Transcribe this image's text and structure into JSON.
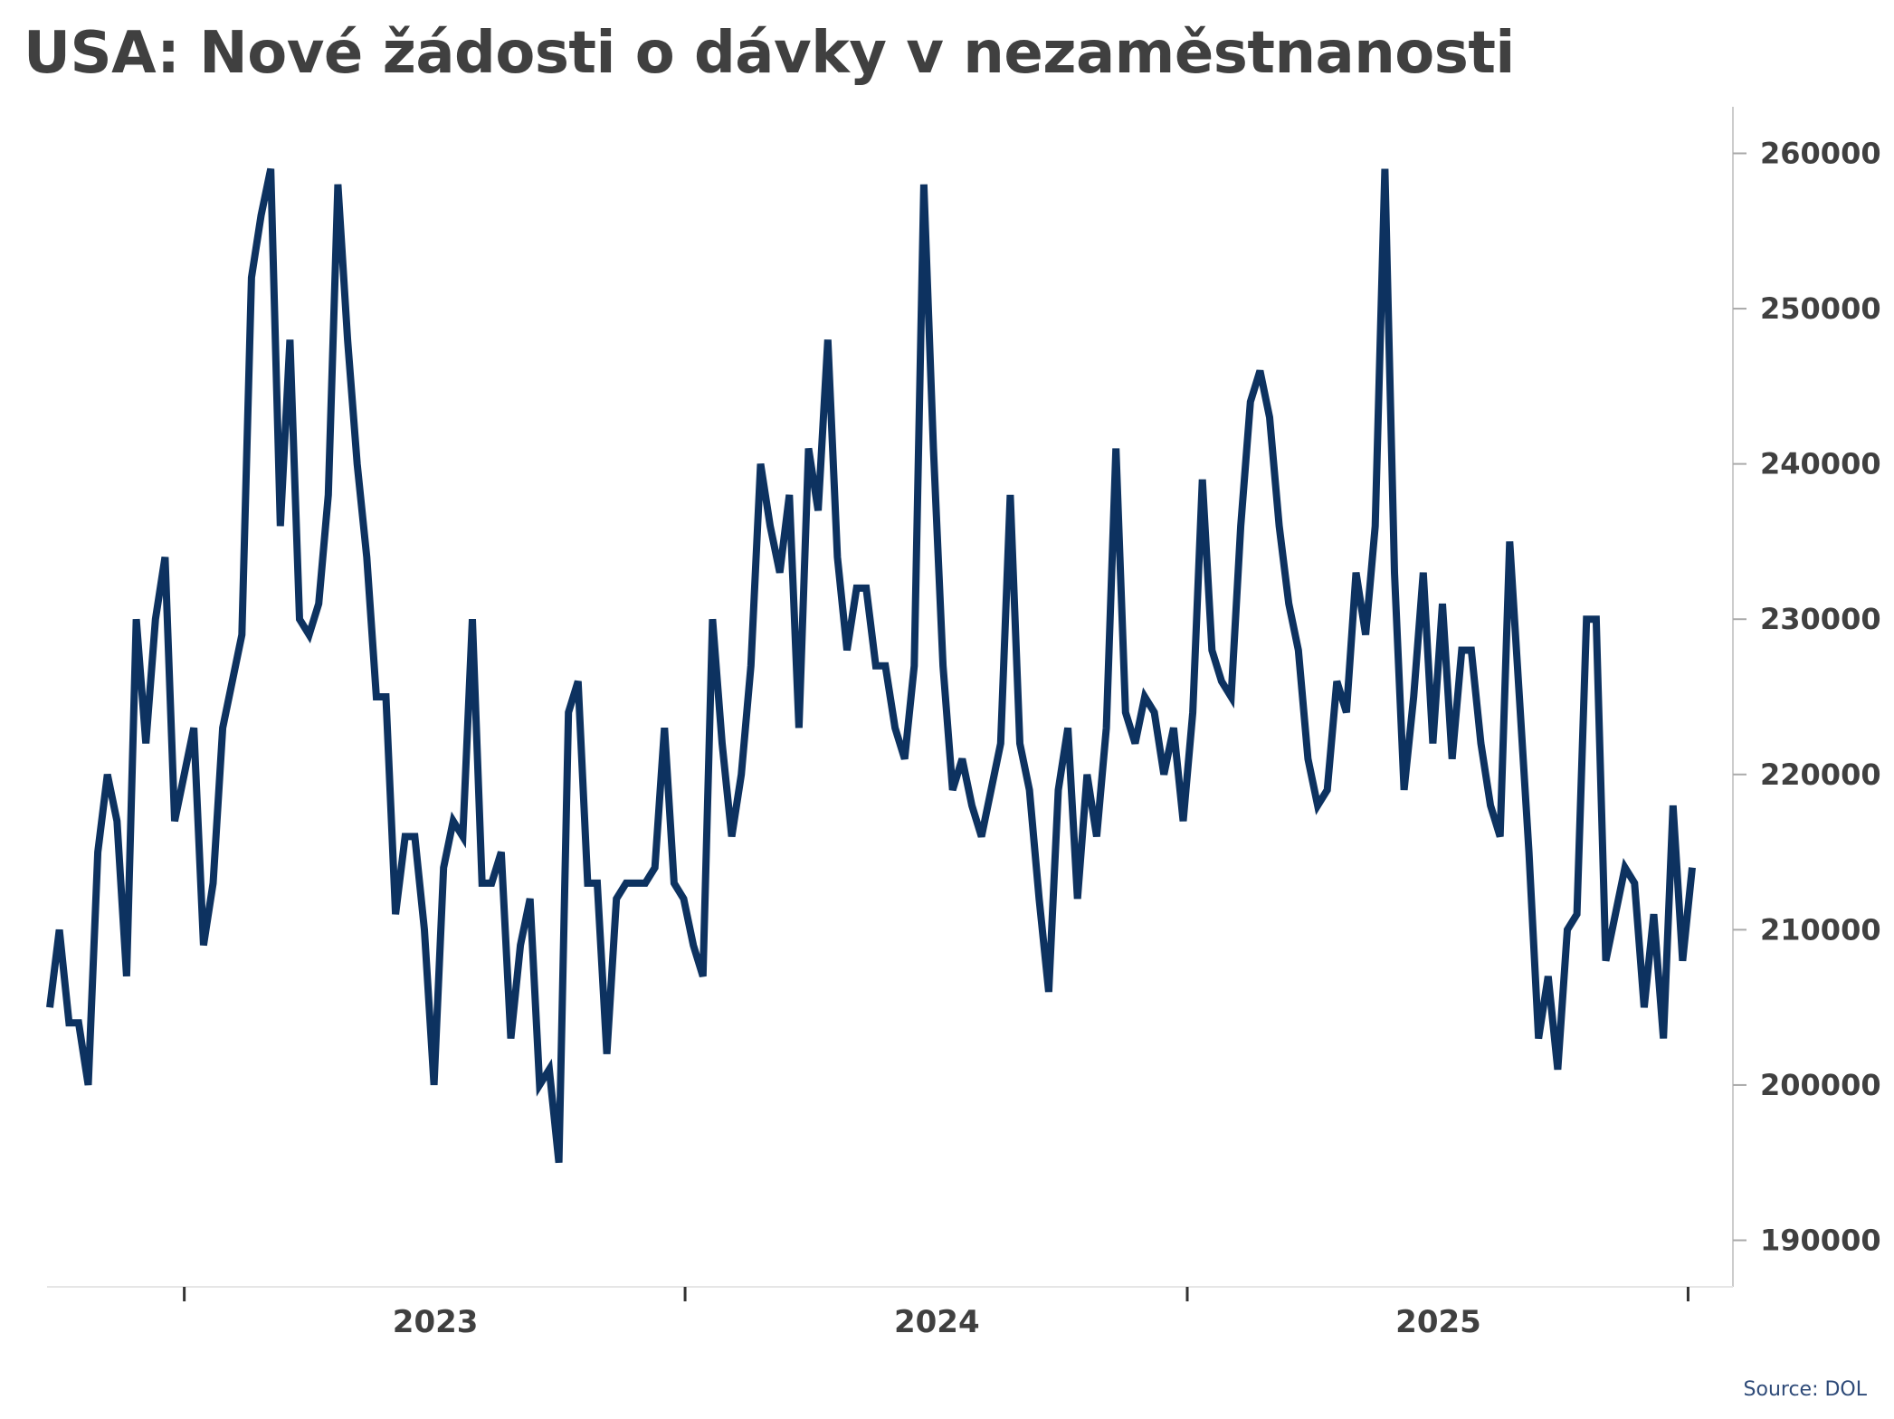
{
  "title": "USA: Nové žádosti o dávky v nezaměstnanosti",
  "source": "Source: DOL",
  "colors": {
    "line": "#0d3260",
    "text": "#404040",
    "axis": "#cccccc",
    "source": "#2e4a78"
  },
  "chart_data": {
    "type": "line",
    "title": "USA: Nové žádosti o dávky v nezaměstnanosti",
    "xlabel": "",
    "ylabel": "",
    "ylim": [
      187000,
      263000
    ],
    "y_ticks": [
      190000,
      200000,
      210000,
      220000,
      230000,
      240000,
      250000,
      260000
    ],
    "y_tick_labels": [
      "190000",
      "200000",
      "210000",
      "220000",
      "230000",
      "240000",
      "250000",
      "260000"
    ],
    "x_labels": [
      "2023",
      "2024",
      "2025"
    ],
    "y_axis_position": "right",
    "grid": false,
    "legend": "none",
    "frequency": "weekly",
    "start_date": "2022-09-24",
    "series": [
      {
        "values": [
          205000,
          210000,
          204000,
          204000,
          200000,
          215000,
          220000,
          217000,
          207000,
          230000,
          222000,
          230000,
          234000,
          217000,
          220000,
          223000,
          209000,
          213000,
          223000,
          226000,
          229000,
          252000,
          256000,
          259000,
          236000,
          248000,
          230000,
          229000,
          231000,
          238000,
          258000,
          248000,
          240000,
          234000,
          225000,
          225000,
          211000,
          216000,
          216000,
          210000,
          200000,
          214000,
          217000,
          216000,
          230000,
          213000,
          213000,
          215000,
          203000,
          209000,
          212000,
          200000,
          201000,
          195000,
          224000,
          226000,
          213000,
          213000,
          202000,
          212000,
          213000,
          213000,
          213000,
          214000,
          223000,
          213000,
          212000,
          209000,
          207000,
          230000,
          222000,
          216000,
          220000,
          227000,
          240000,
          236000,
          233000,
          238000,
          223000,
          241000,
          237000,
          248000,
          234000,
          228000,
          232000,
          232000,
          227000,
          227000,
          223000,
          221000,
          227000,
          258000,
          241000,
          227000,
          219000,
          221000,
          218000,
          216000,
          219000,
          222000,
          238000,
          222000,
          219000,
          212000,
          206000,
          219000,
          223000,
          212000,
          220000,
          216000,
          223000,
          241000,
          224000,
          222000,
          225000,
          224000,
          220000,
          223000,
          217000,
          224000,
          239000,
          228000,
          226000,
          225000,
          236000,
          244000,
          246000,
          243000,
          236000,
          231000,
          228000,
          221000,
          218000,
          219000,
          226000,
          224000,
          233000,
          229000,
          236000,
          259000,
          233000,
          219000,
          225000,
          233000,
          222000,
          231000,
          221000,
          228000,
          228000,
          222000,
          218000,
          216000,
          235000,
          225000,
          215000,
          203000,
          207000,
          201000,
          210000,
          211000,
          230000,
          230000,
          208000,
          211000,
          214000,
          213000,
          205000,
          211000,
          203000,
          218000,
          208000,
          214000
        ]
      }
    ]
  }
}
